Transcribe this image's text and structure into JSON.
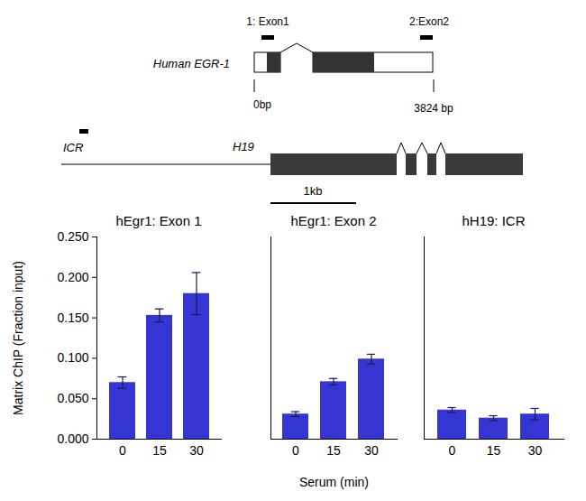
{
  "diagram": {
    "egr1": {
      "name": "Human EGR-1",
      "probes": [
        "1: Exon1",
        "2:Exon2"
      ],
      "start_label": "0bp",
      "end_label": "3824 bp"
    },
    "h19": {
      "name": "H19",
      "probe": "ICR",
      "scale_bar": "1kb"
    }
  },
  "chart_data": [
    {
      "type": "bar",
      "title": "hEgr1: Exon 1",
      "y_label": "Matrix ChIP (Fraction input)",
      "categories": [
        "0",
        "15",
        "30"
      ],
      "values": [
        0.07,
        0.153,
        0.18
      ],
      "errors": [
        0.007,
        0.008,
        0.026
      ],
      "color": "#3535d4",
      "ylim": [
        0,
        0.25
      ],
      "yticks": [
        {
          "value": 0,
          "label": "0.000"
        },
        {
          "value": 0.05,
          "label": "0.050"
        },
        {
          "value": 0.1,
          "label": "0.100"
        },
        {
          "value": 0.15,
          "label": "0.150"
        },
        {
          "value": 0.2,
          "label": "0.200"
        },
        {
          "value": 0.25,
          "label": "0.250"
        }
      ],
      "grid": false
    },
    {
      "type": "bar",
      "title": "hEgr1: Exon 2",
      "x_label": "Serum (min)",
      "categories": [
        "0",
        "15",
        "30"
      ],
      "values": [
        0.031,
        0.071,
        0.099
      ],
      "errors": [
        0.003,
        0.004,
        0.006
      ],
      "color": "#3535d4",
      "ylim": [
        0,
        0.25
      ],
      "yticks": [
        {
          "value": 0,
          "label": "0.000"
        },
        {
          "value": 0.05,
          "label": "0.050"
        },
        {
          "value": 0.1,
          "label": "0.100"
        },
        {
          "value": 0.15,
          "label": "0.150"
        },
        {
          "value": 0.2,
          "label": "0.200"
        },
        {
          "value": 0.25,
          "label": "0.250"
        }
      ],
      "grid": false,
      "tick_labels": "x"
    },
    {
      "type": "bar",
      "title": "hH19: ICR",
      "categories": [
        "0",
        "15",
        "30"
      ],
      "values": [
        0.036,
        0.026,
        0.031
      ],
      "errors": [
        0.003,
        0.003,
        0.007
      ],
      "color": "#3535d4",
      "ylim": [
        0,
        0.25
      ],
      "yticks": [
        {
          "value": 0,
          "label": "0.000"
        },
        {
          "value": 0.05,
          "label": "0.050"
        },
        {
          "value": 0.1,
          "label": "0.100"
        },
        {
          "value": 0.15,
          "label": "0.150"
        },
        {
          "value": 0.2,
          "label": "0.200"
        },
        {
          "value": 0.25,
          "label": "0.250"
        }
      ],
      "grid": false,
      "tick_labels": "x"
    }
  ]
}
